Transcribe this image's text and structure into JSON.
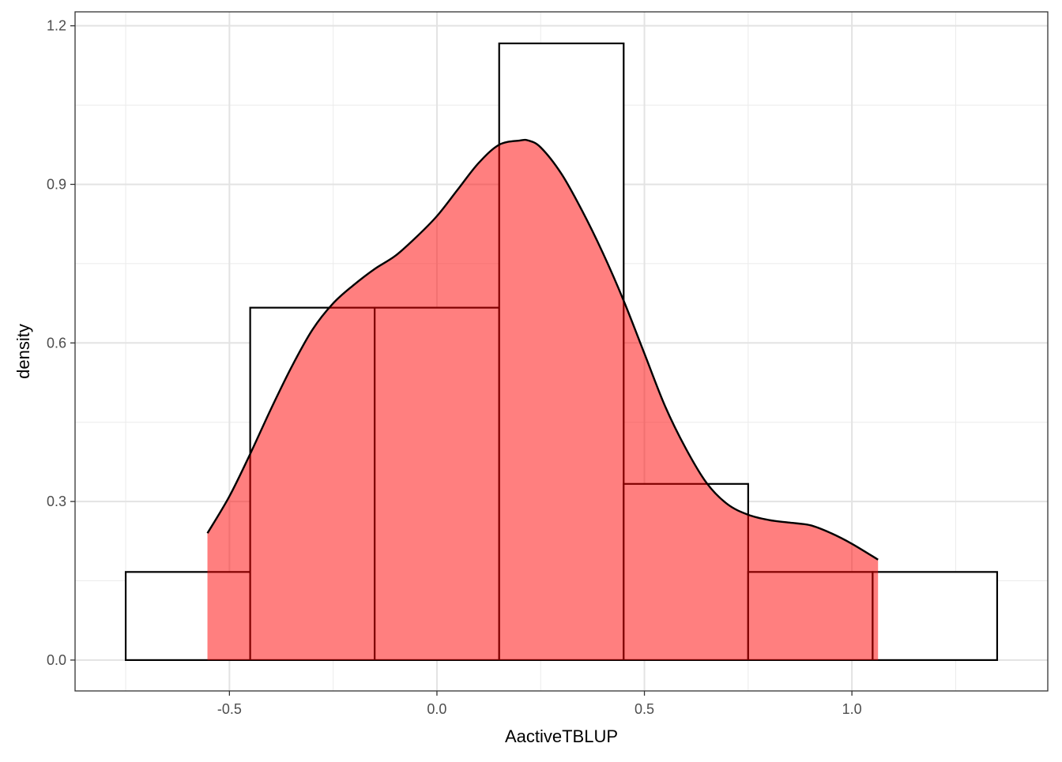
{
  "chart_data": {
    "type": "histogram",
    "xlabel": "AactiveTBLUP",
    "ylabel": "density",
    "xlim": [
      -0.872,
      1.472
    ],
    "ylim": [
      -0.0584,
      1.2264
    ],
    "x_major_ticks": [
      -0.5,
      0.0,
      0.5,
      1.0
    ],
    "x_tick_labels": [
      "-0.5",
      "0.0",
      "0.5",
      "1.0"
    ],
    "x_minor_ticks": [
      -0.75,
      -0.25,
      0.25,
      0.75,
      1.25
    ],
    "y_major_ticks": [
      0.0,
      0.3,
      0.6,
      0.9,
      1.2
    ],
    "y_tick_labels": [
      "0.0",
      "0.3",
      "0.6",
      "0.9",
      "1.2"
    ],
    "y_minor_ticks": [
      0.15,
      0.45,
      0.75,
      1.05
    ],
    "grid": true,
    "histogram": {
      "bin_width": 0.3,
      "bins": [
        {
          "xmin": -0.75,
          "xmax": -0.45,
          "density": 0.1667
        },
        {
          "xmin": -0.45,
          "xmax": -0.15,
          "density": 0.6667
        },
        {
          "xmin": -0.15,
          "xmax": 0.15,
          "density": 0.6667
        },
        {
          "xmin": 0.15,
          "xmax": 0.45,
          "density": 1.1667
        },
        {
          "xmin": 0.45,
          "xmax": 0.75,
          "density": 0.3333
        },
        {
          "xmin": 0.75,
          "xmax": 1.05,
          "density": 0.1667
        },
        {
          "xmin": 1.05,
          "xmax": 1.35,
          "density": 0.1667
        }
      ],
      "fill": "#ffffff",
      "stroke": "#000000"
    },
    "density_curve": {
      "x": [
        -0.553,
        -0.5,
        -0.45,
        -0.4,
        -0.35,
        -0.3,
        -0.25,
        -0.2,
        -0.15,
        -0.1,
        -0.05,
        0.0,
        0.05,
        0.1,
        0.15,
        0.2,
        0.22,
        0.25,
        0.3,
        0.35,
        0.4,
        0.45,
        0.5,
        0.55,
        0.6,
        0.65,
        0.7,
        0.75,
        0.8,
        0.85,
        0.9,
        0.95,
        1.0,
        1.063
      ],
      "y": [
        0.24,
        0.31,
        0.39,
        0.475,
        0.555,
        0.625,
        0.675,
        0.71,
        0.74,
        0.765,
        0.8,
        0.84,
        0.89,
        0.94,
        0.975,
        0.983,
        0.983,
        0.97,
        0.92,
        0.85,
        0.77,
        0.68,
        0.58,
        0.48,
        0.4,
        0.335,
        0.295,
        0.275,
        0.265,
        0.26,
        0.255,
        0.24,
        0.22,
        0.19
      ],
      "fill": "#FF0000",
      "fill_opacity": 0.5,
      "stroke": "#000000"
    }
  }
}
